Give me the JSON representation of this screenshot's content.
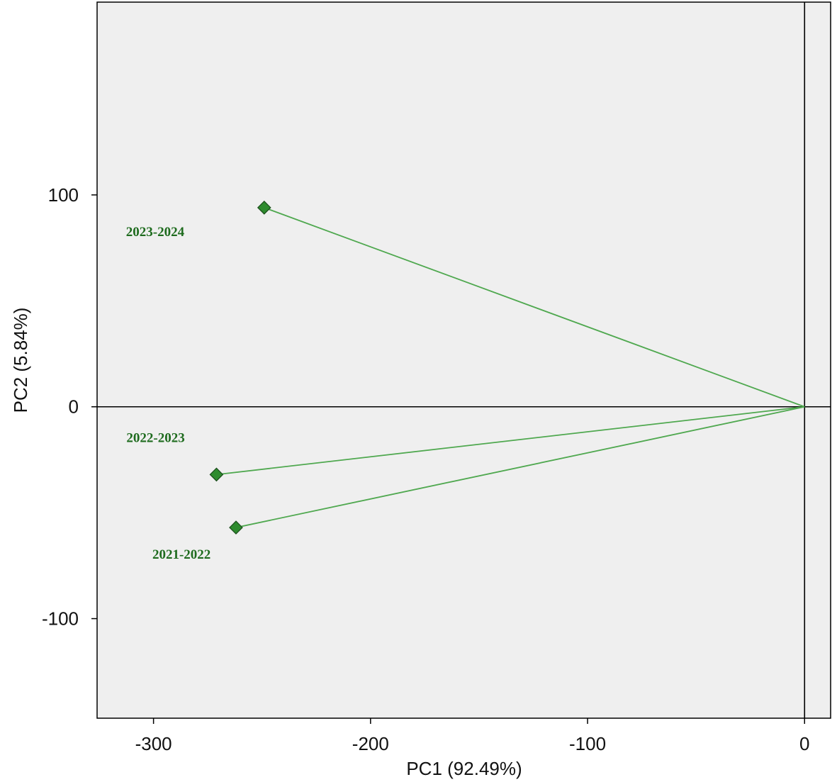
{
  "chart_data": {
    "type": "scatter",
    "title": "",
    "xlabel": "PC1 (92.49%)",
    "ylabel": "PC2 (5.84%)",
    "xlim": [
      -326,
      12
    ],
    "ylim": [
      -147,
      191
    ],
    "x_ticks": [
      -300,
      -200,
      -100,
      0
    ],
    "y_ticks": [
      -100,
      0,
      100
    ],
    "x_tick_labels": [
      "-300",
      "-200",
      "-100",
      "0"
    ],
    "y_tick_labels": [
      "-100",
      "0",
      "100"
    ],
    "reference_lines": {
      "x": 0,
      "y": 0
    },
    "grid": false,
    "series": [
      {
        "vectors_from_origin": true,
        "marker": "diamond",
        "color": "#2e8b2e",
        "line_color": "#4fa84f",
        "label_color": "#1e6b1e",
        "points": [
          {
            "label": "2023-2024",
            "x": -249,
            "y": 94
          },
          {
            "label": "2022-2023",
            "x": -271,
            "y": -32
          },
          {
            "label": "2021-2022",
            "x": -262,
            "y": -57
          }
        ]
      }
    ]
  }
}
